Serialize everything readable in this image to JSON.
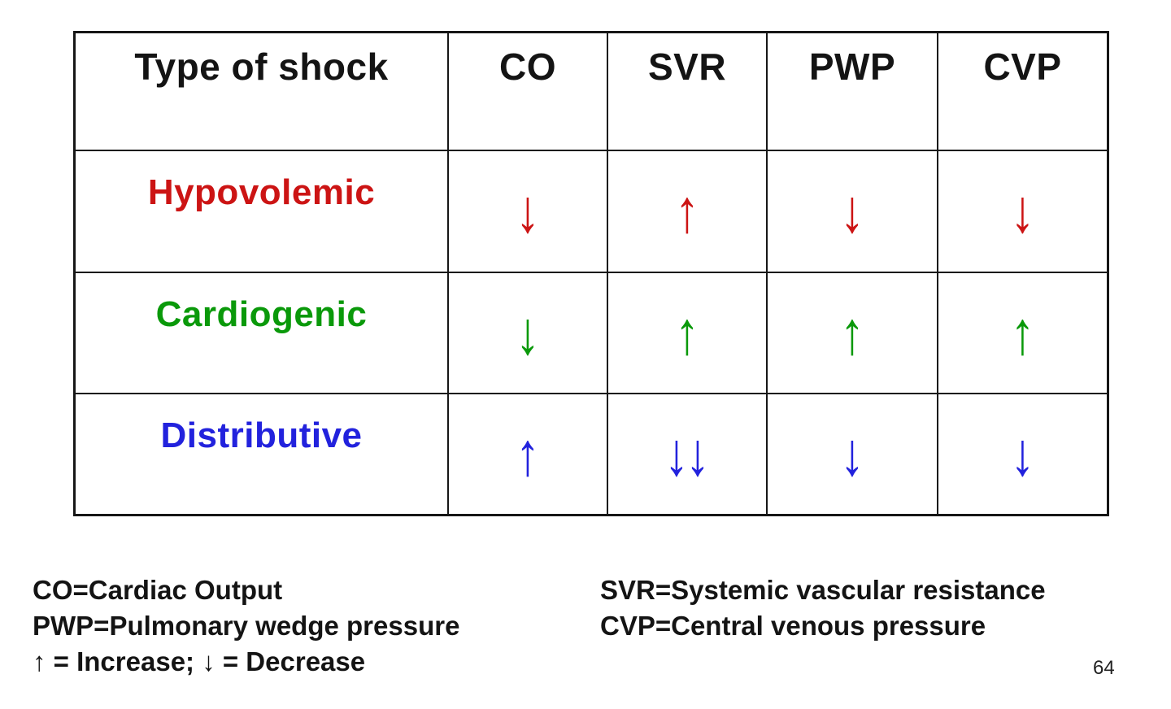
{
  "table": {
    "headers": [
      "Type of shock",
      "CO",
      "SVR",
      "PWP",
      "CVP"
    ],
    "rows": [
      {
        "label": "Hypovolemic",
        "color": "#cc1414",
        "values": [
          "↓",
          "↑",
          "↓",
          "↓"
        ]
      },
      {
        "label": "Cardiogenic",
        "color": "#0a990a",
        "values": [
          "↓",
          "↑",
          "↑",
          "↑"
        ]
      },
      {
        "label": "Distributive",
        "color": "#2222dd",
        "values": [
          "↑",
          "↓↓",
          "↓",
          "↓"
        ]
      }
    ]
  },
  "legend": {
    "co": "CO=Cardiac Output",
    "svr": "SVR=Systemic vascular resistance",
    "pwp": "PWP=Pulmonary wedge pressure",
    "cvp": "CVP=Central venous pressure",
    "arrows_key": "↑ = Increase; ↓ = Decrease"
  },
  "page_number": "64"
}
